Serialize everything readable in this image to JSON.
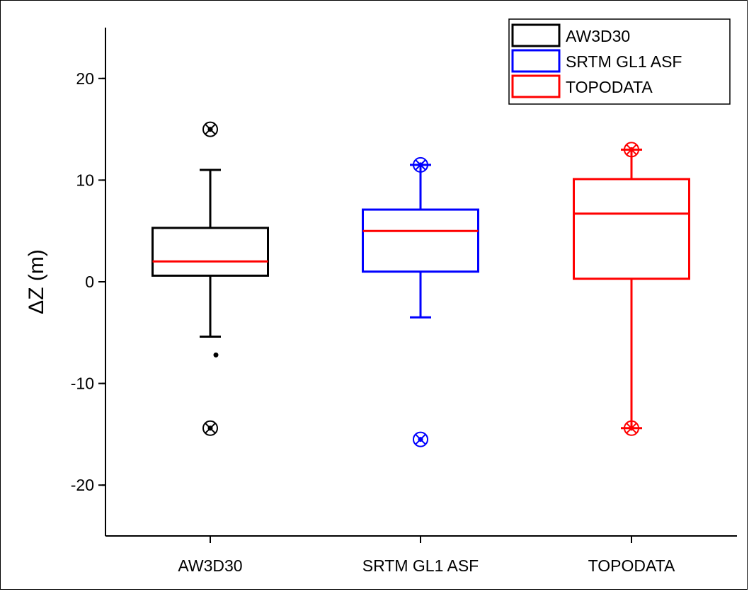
{
  "chart_data": {
    "type": "box",
    "ylabel": "ΔZ (m)",
    "xlabel": "",
    "ylim": [
      -25,
      25
    ],
    "y_ticks": [
      -20,
      -10,
      0,
      10,
      20
    ],
    "y_tick_labels": [
      "-20",
      "-10",
      "0",
      "10",
      "20"
    ],
    "categories": [
      "AW3D30",
      "SRTM GL1 ASF",
      "TOPODATA"
    ],
    "legend_position": "top-right",
    "grid": false,
    "series": [
      {
        "name": "AW3D30",
        "color": "#000000",
        "median_color": "#ff0000",
        "whisker_low": -5.4,
        "q1": 0.6,
        "median": 2.0,
        "q3": 5.3,
        "whisker_high": 11.0,
        "mean": -7.2,
        "outliers": [
          15.0,
          -14.4
        ]
      },
      {
        "name": "SRTM GL1 ASF",
        "color": "#0000ff",
        "median_color": "#ff0000",
        "whisker_low": -3.5,
        "q1": 1.0,
        "median": 5.0,
        "q3": 7.1,
        "whisker_high": 11.5,
        "outliers": [
          11.5,
          -15.5
        ]
      },
      {
        "name": "TOPODATA",
        "color": "#ff0000",
        "median_color": "#ff0000",
        "whisker_low": -14.4,
        "q1": 0.3,
        "median": 6.7,
        "q3": 10.1,
        "whisker_high": 13.0,
        "outliers": [
          13.0,
          -14.4
        ]
      }
    ]
  }
}
